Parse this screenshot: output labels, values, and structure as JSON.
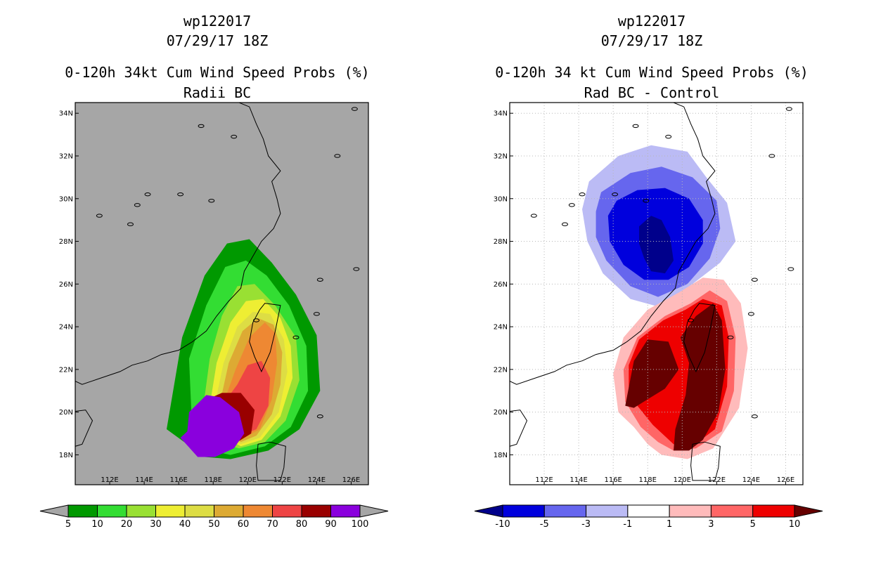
{
  "chart_data": [
    {
      "type": "heatmap",
      "header": {
        "storm_id": "wp122017",
        "datetime": "07/29/17 18Z"
      },
      "title": "0-120h 34kt Cum Wind Speed Probs (%)",
      "subtitle": "Radii BC",
      "x_ticks": [
        "112E",
        "114E",
        "116E",
        "118E",
        "120E",
        "122E",
        "124E",
        "126E"
      ],
      "y_ticks": [
        "18N",
        "20N",
        "22N",
        "24N",
        "26N",
        "28N",
        "30N",
        "32N",
        "34N"
      ],
      "xlim": [
        110.0,
        127.0
      ],
      "ylim": [
        16.6,
        34.5
      ],
      "grid": false,
      "background": "#a6a6a6",
      "colorbar": {
        "levels": [
          "5",
          "10",
          "20",
          "30",
          "40",
          "50",
          "60",
          "70",
          "80",
          "90",
          "100"
        ],
        "colors": [
          "#009900",
          "#33dd33",
          "#99e033",
          "#eeee33",
          "#dddd44",
          "#ddaa33",
          "#ee8833",
          "#ee4444",
          "#990000",
          "#8a00dd"
        ],
        "under_color": "#a6a6a6",
        "over_color": "#a6a6a6"
      },
      "contours": [
        {
          "level": "5-10",
          "points": [
            [
              115.3,
              19.2
            ],
            [
              116.2,
              23.5
            ],
            [
              117.5,
              26.4
            ],
            [
              118.8,
              27.9
            ],
            [
              120.1,
              28.1
            ],
            [
              121.4,
              27.0
            ],
            [
              122.8,
              25.5
            ],
            [
              124.0,
              23.6
            ],
            [
              124.2,
              21.0
            ],
            [
              123.0,
              19.2
            ],
            [
              121.2,
              18.2
            ],
            [
              119.0,
              17.8
            ],
            [
              117.5,
              17.9
            ]
          ]
        },
        {
          "level": "10-20",
          "points": [
            [
              116.8,
              18.8
            ],
            [
              116.6,
              22.5
            ],
            [
              117.6,
              25.0
            ],
            [
              118.7,
              26.8
            ],
            [
              119.9,
              27.1
            ],
            [
              121.1,
              26.4
            ],
            [
              122.4,
              25.0
            ],
            [
              123.4,
              23.1
            ],
            [
              123.5,
              21.0
            ],
            [
              122.5,
              19.3
            ],
            [
              121.0,
              18.4
            ],
            [
              119.0,
              18.0
            ],
            [
              117.8,
              18.2
            ]
          ]
        },
        {
          "level": "20-30",
          "points": [
            [
              117.3,
              19.5
            ],
            [
              117.8,
              22.5
            ],
            [
              118.5,
              24.5
            ],
            [
              119.4,
              25.9
            ],
            [
              120.4,
              26.0
            ],
            [
              121.6,
              25.0
            ],
            [
              122.8,
              23.5
            ],
            [
              123.0,
              21.5
            ],
            [
              122.2,
              19.6
            ],
            [
              121.0,
              18.6
            ],
            [
              119.5,
              18.3
            ],
            [
              118.2,
              18.6
            ]
          ]
        },
        {
          "level": "30-40",
          "points": [
            [
              117.7,
              19.8
            ],
            [
              118.2,
              22.3
            ],
            [
              119.0,
              24.2
            ],
            [
              119.9,
              25.2
            ],
            [
              120.9,
              25.3
            ],
            [
              121.9,
              24.4
            ],
            [
              122.5,
              23.1
            ],
            [
              122.6,
              21.6
            ],
            [
              121.9,
              19.8
            ],
            [
              120.8,
              18.7
            ],
            [
              119.6,
              18.4
            ],
            [
              118.5,
              18.9
            ]
          ]
        },
        {
          "level": "40-50",
          "points": [
            [
              118.0,
              20.0
            ],
            [
              118.6,
              22.3
            ],
            [
              119.4,
              24.0
            ],
            [
              120.3,
              24.7
            ],
            [
              121.3,
              24.6
            ],
            [
              122.1,
              23.4
            ],
            [
              122.3,
              21.9
            ],
            [
              121.8,
              20.0
            ],
            [
              120.7,
              18.8
            ],
            [
              119.6,
              18.5
            ],
            [
              118.7,
              19.0
            ]
          ]
        },
        {
          "level": "50-60",
          "points": [
            [
              118.3,
              20.1
            ],
            [
              118.9,
              22.3
            ],
            [
              119.7,
              23.8
            ],
            [
              120.6,
              24.4
            ],
            [
              121.5,
              24.1
            ],
            [
              122.0,
              22.8
            ],
            [
              121.9,
              21.3
            ],
            [
              121.4,
              19.9
            ],
            [
              120.5,
              18.9
            ],
            [
              119.6,
              18.6
            ],
            [
              118.9,
              19.1
            ]
          ]
        },
        {
          "level": "60-70",
          "points": [
            [
              118.5,
              20.2
            ],
            [
              119.3,
              22.0
            ],
            [
              120.1,
              23.5
            ],
            [
              121.0,
              24.2
            ],
            [
              121.6,
              23.7
            ],
            [
              121.7,
              22.3
            ],
            [
              121.4,
              20.6
            ],
            [
              120.7,
              19.2
            ],
            [
              119.8,
              18.8
            ],
            [
              119.0,
              19.3
            ]
          ]
        },
        {
          "level": "70-80",
          "points": [
            [
              118.5,
              20.3
            ],
            [
              119.4,
              21.3
            ],
            [
              120.0,
              22.2
            ],
            [
              120.8,
              22.4
            ],
            [
              121.3,
              21.6
            ],
            [
              121.2,
              20.3
            ],
            [
              120.5,
              19.2
            ],
            [
              119.6,
              18.9
            ],
            [
              118.9,
              19.4
            ]
          ]
        },
        {
          "level": "80-90",
          "points": [
            [
              117.4,
              20.5
            ],
            [
              118.5,
              20.9
            ],
            [
              119.6,
              20.9
            ],
            [
              120.4,
              20.1
            ],
            [
              120.2,
              19.0
            ],
            [
              119.4,
              18.6
            ],
            [
              118.2,
              18.5
            ]
          ]
        },
        {
          "level": "90-100",
          "points": [
            [
              116.6,
              20.0
            ],
            [
              117.6,
              20.8
            ],
            [
              118.4,
              20.7
            ],
            [
              119.5,
              20.0
            ],
            [
              119.8,
              19.0
            ],
            [
              119.2,
              18.3
            ],
            [
              118.1,
              17.9
            ],
            [
              117.1,
              17.9
            ],
            [
              116.1,
              18.8
            ],
            [
              116.5,
              19.1
            ]
          ]
        }
      ]
    },
    {
      "type": "heatmap",
      "header": {
        "storm_id": "wp122017",
        "datetime": "07/29/17 18Z"
      },
      "title": "0-120h 34 kt Cum Wind Speed Probs (%)",
      "subtitle": "Rad BC - Control",
      "x_ticks": [
        "112E",
        "114E",
        "116E",
        "118E",
        "120E",
        "122E",
        "124E",
        "126E"
      ],
      "y_ticks": [
        "18N",
        "20N",
        "22N",
        "24N",
        "26N",
        "28N",
        "30N",
        "32N",
        "34N"
      ],
      "xlim": [
        110.0,
        127.0
      ],
      "ylim": [
        16.6,
        34.5
      ],
      "grid": true,
      "background": "#ffffff",
      "colorbar": {
        "levels": [
          "-10",
          "-5",
          "-3",
          "-1",
          "1",
          "3",
          "5",
          "10"
        ],
        "colors": [
          "#0000dd",
          "#6666ee",
          "#bbbbf5",
          "#ffffff",
          "#ffbbbb",
          "#ff6666",
          "#ee0000"
        ],
        "under_color": "#00008b",
        "over_color": "#660000"
      },
      "contours": [
        {
          "level": "-3 to -1",
          "points": [
            [
              114.2,
              29.5
            ],
            [
              114.6,
              30.8
            ],
            [
              116.3,
              32.0
            ],
            [
              118.2,
              32.5
            ],
            [
              120.3,
              32.2
            ],
            [
              121.4,
              31.0
            ],
            [
              122.6,
              29.8
            ],
            [
              123.1,
              28.0
            ],
            [
              122.2,
              27.0
            ],
            [
              120.6,
              26.0
            ],
            [
              118.8,
              24.9
            ],
            [
              117.0,
              25.3
            ],
            [
              115.4,
              26.5
            ],
            [
              114.5,
              28.0
            ]
          ]
        },
        {
          "level": "-5 to -3",
          "points": [
            [
              115.0,
              29.4
            ],
            [
              115.3,
              30.3
            ],
            [
              117.0,
              31.2
            ],
            [
              118.8,
              31.5
            ],
            [
              120.6,
              31.0
            ],
            [
              122.0,
              29.9
            ],
            [
              122.2,
              28.6
            ],
            [
              121.6,
              27.2
            ],
            [
              120.3,
              26.0
            ],
            [
              118.6,
              25.4
            ],
            [
              117.0,
              25.9
            ],
            [
              115.6,
              27.1
            ],
            [
              115.0,
              28.2
            ]
          ]
        },
        {
          "level": "-10 to -5",
          "points": [
            [
              115.7,
              29.2
            ],
            [
              116.2,
              29.9
            ],
            [
              117.4,
              30.4
            ],
            [
              119.0,
              30.5
            ],
            [
              120.4,
              30.0
            ],
            [
              121.2,
              29.0
            ],
            [
              121.2,
              27.9
            ],
            [
              120.4,
              26.8
            ],
            [
              119.2,
              26.2
            ],
            [
              117.8,
              26.2
            ],
            [
              116.6,
              26.9
            ],
            [
              115.8,
              28.0
            ]
          ]
        },
        {
          "level": "below -10",
          "points": [
            [
              117.5,
              27.9
            ],
            [
              117.5,
              28.7
            ],
            [
              118.2,
              29.2
            ],
            [
              118.8,
              29.0
            ],
            [
              119.3,
              28.2
            ],
            [
              119.5,
              27.1
            ],
            [
              119.0,
              26.5
            ],
            [
              118.2,
              26.6
            ],
            [
              117.8,
              27.2
            ]
          ]
        },
        {
          "level": "1 to 3",
          "points": [
            [
              116.3,
              20.0
            ],
            [
              116.0,
              21.8
            ],
            [
              116.6,
              23.5
            ],
            [
              118.0,
              24.8
            ],
            [
              119.8,
              25.6
            ],
            [
              121.2,
              26.3
            ],
            [
              122.4,
              26.2
            ],
            [
              123.4,
              25.1
            ],
            [
              123.8,
              23.0
            ],
            [
              123.3,
              20.2
            ],
            [
              121.8,
              18.3
            ],
            [
              120.3,
              17.8
            ],
            [
              118.8,
              18.0
            ],
            [
              118.0,
              18.5
            ],
            [
              117.2,
              19.3
            ]
          ]
        },
        {
          "level": "3 to 5",
          "points": [
            [
              116.7,
              20.5
            ],
            [
              116.6,
              22.0
            ],
            [
              117.4,
              23.5
            ],
            [
              119.0,
              24.5
            ],
            [
              120.5,
              25.1
            ],
            [
              121.6,
              25.7
            ],
            [
              122.6,
              25.2
            ],
            [
              123.1,
              23.5
            ],
            [
              123.0,
              21.0
            ],
            [
              122.3,
              19.1
            ],
            [
              120.8,
              18.3
            ],
            [
              119.5,
              18.2
            ],
            [
              118.6,
              18.6
            ],
            [
              117.6,
              19.3
            ]
          ]
        },
        {
          "level": "5 to 10",
          "points": [
            [
              116.9,
              20.8
            ],
            [
              116.9,
              22.2
            ],
            [
              117.5,
              23.4
            ],
            [
              118.9,
              24.3
            ],
            [
              120.2,
              24.8
            ],
            [
              121.2,
              25.3
            ],
            [
              122.3,
              25.0
            ],
            [
              122.7,
              23.5
            ],
            [
              122.6,
              21.2
            ],
            [
              121.9,
              19.2
            ],
            [
              120.6,
              18.4
            ],
            [
              119.5,
              18.5
            ],
            [
              118.3,
              19.4
            ],
            [
              117.5,
              20.2
            ]
          ]
        },
        {
          "level": "above 10 west",
          "points": [
            [
              116.7,
              20.3
            ],
            [
              117.2,
              22.4
            ],
            [
              118.0,
              23.4
            ],
            [
              119.2,
              23.3
            ],
            [
              119.8,
              22.0
            ],
            [
              119.0,
              21.1
            ],
            [
              118.0,
              20.6
            ],
            [
              117.2,
              20.2
            ]
          ]
        },
        {
          "level": "above 10 east",
          "points": [
            [
              119.5,
              18.2
            ],
            [
              119.6,
              19.2
            ],
            [
              120.2,
              20.8
            ],
            [
              120.4,
              22.3
            ],
            [
              119.9,
              23.5
            ],
            [
              120.8,
              24.5
            ],
            [
              121.8,
              25.1
            ],
            [
              122.3,
              24.3
            ],
            [
              122.5,
              22.0
            ],
            [
              122.1,
              20.0
            ],
            [
              121.2,
              18.7
            ],
            [
              120.4,
              18.2
            ]
          ]
        }
      ]
    }
  ]
}
